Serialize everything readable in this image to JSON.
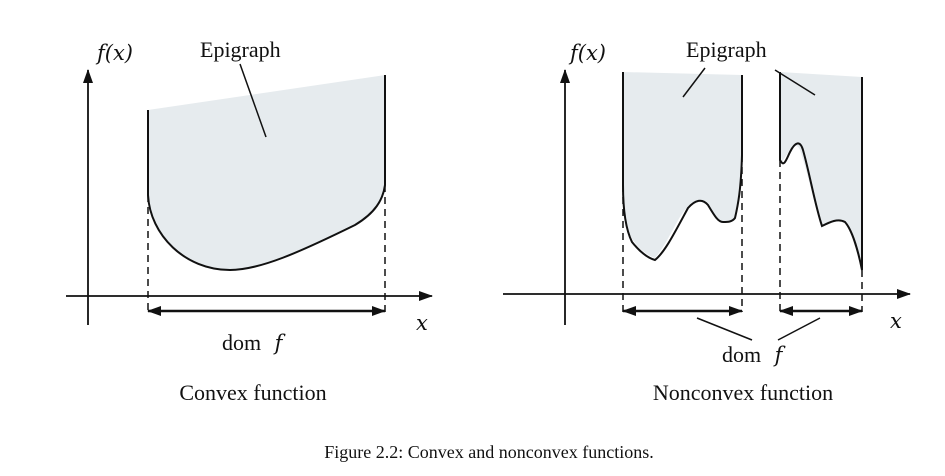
{
  "left_panel": {
    "y_axis_label": "f(x)",
    "x_axis_label": "x",
    "epigraph_label": "Epigraph",
    "dom_label_prefix": "dom",
    "dom_label_var": "f",
    "title": "Convex function"
  },
  "right_panel": {
    "y_axis_label": "f(x)",
    "x_axis_label": "x",
    "epigraph_label": "Epigraph",
    "dom_label_prefix": "dom",
    "dom_label_var": "f",
    "title": "Nonconvex function"
  },
  "caption": "Figure 2.2: Convex and nonconvex functions.",
  "colors": {
    "epigraph_fill": "#e6ebee",
    "ink": "#111111"
  }
}
